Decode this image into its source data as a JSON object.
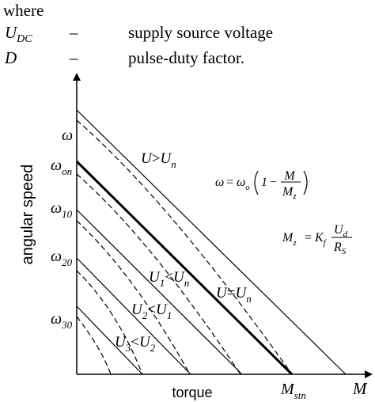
{
  "text": {
    "where": "where",
    "defs": [
      {
        "symbol": "U",
        "subscript": "DC",
        "dash": "–",
        "description": "supply source voltage"
      },
      {
        "symbol": "D",
        "subscript": "",
        "dash": "–",
        "description": "pulse-duty factor."
      }
    ]
  },
  "diagram": {
    "y_axis_label": "angular speed",
    "x_axis_label": "torque",
    "x_axis_symbol": "M",
    "stall_torque_label": {
      "base": "M",
      "sub": "stn"
    },
    "y_ticks": [
      {
        "base": "ω",
        "sub": ""
      },
      {
        "base": "ω",
        "sub": "on"
      },
      {
        "base": "ω",
        "sub": "10"
      },
      {
        "base": "ω",
        "sub": "20"
      },
      {
        "base": "ω",
        "sub": "30"
      }
    ],
    "curve_labels": {
      "above": {
        "a": "U",
        "op": ">",
        "b": "U",
        "b_sub": "n"
      },
      "nominal": {
        "a": "U",
        "op": "=",
        "b": "U",
        "b_sub": "n"
      },
      "u1": {
        "a": "U",
        "a_sub": "1",
        "op": "<",
        "b": "U",
        "b_sub": "n"
      },
      "u2": {
        "a": "U",
        "a_sub": "2",
        "op": "<",
        "b": "U",
        "b_sub": "1"
      },
      "u3": {
        "a": "U",
        "a_sub": "3",
        "op": "<",
        "b": "U",
        "b_sub": "2"
      }
    },
    "formula1": {
      "lhs": "ω",
      "eq": "=",
      "w": "ω",
      "w_sub": "o",
      "one": "1",
      "minus": "−",
      "num": "M",
      "den": "M",
      "den_sub": "z"
    },
    "formula2": {
      "lhs": "M",
      "lhs_sub": "z",
      "eq": "=",
      "k": "K",
      "k_sub": "f",
      "num": "U",
      "num_sub": "d",
      "den": "R",
      "den_sub": "S"
    }
  }
}
